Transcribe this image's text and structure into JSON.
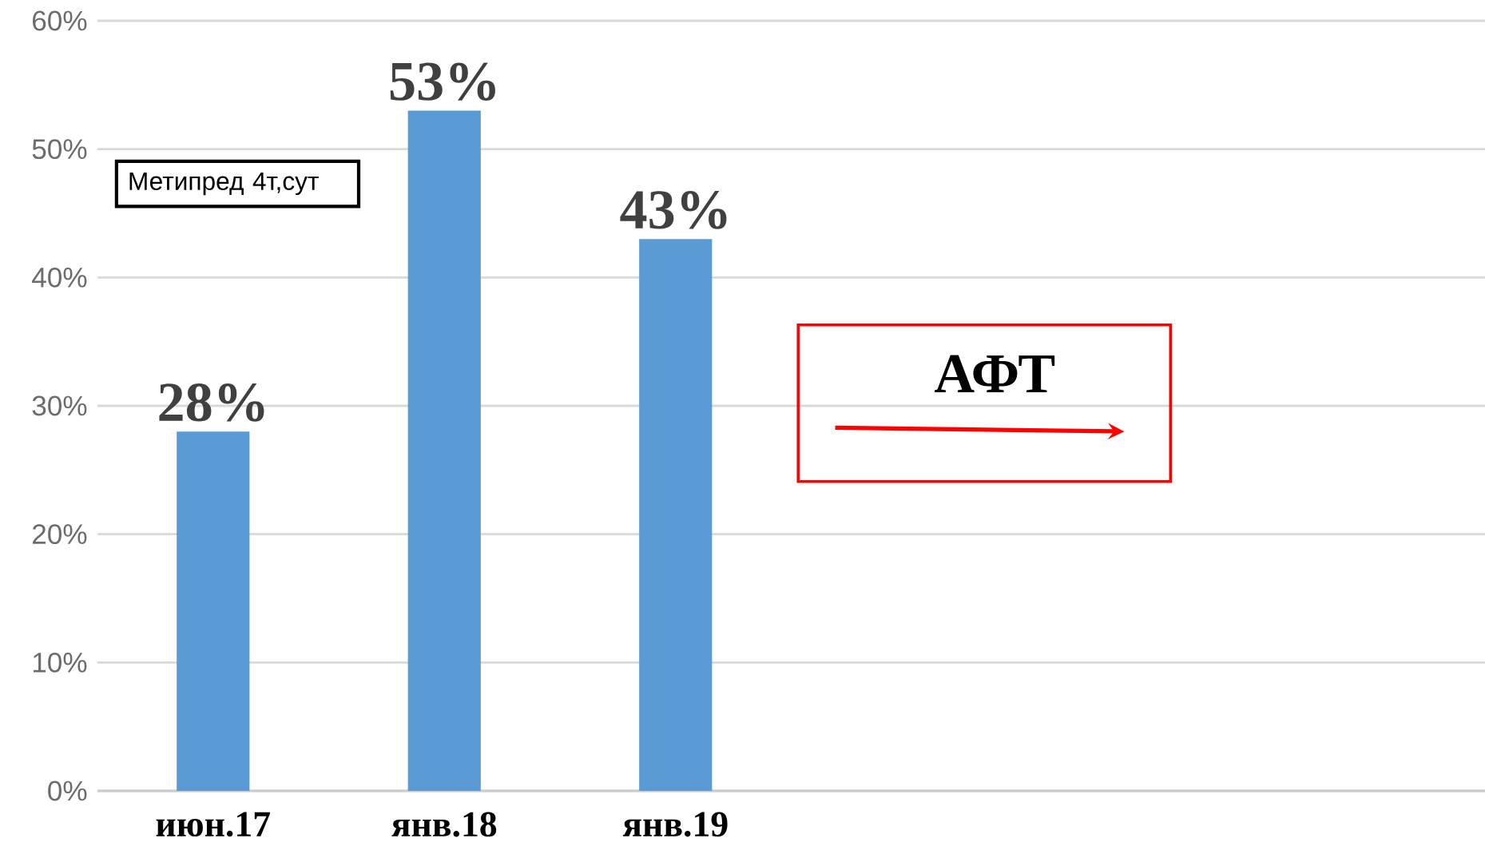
{
  "chart_data": {
    "type": "bar",
    "categories": [
      "июн.17",
      "янв.18",
      "янв.19",
      null,
      null,
      null
    ],
    "values": [
      28,
      53,
      43,
      null,
      null,
      null
    ],
    "value_labels": [
      "28%",
      "53%",
      "43%",
      null,
      null,
      null
    ],
    "color": "#5b9bd5",
    "ylim": [
      0,
      60
    ],
    "yticks": [
      {
        "value": 0,
        "label": "0%"
      },
      {
        "value": 10,
        "label": "10%"
      },
      {
        "value": 20,
        "label": "20%"
      },
      {
        "value": 30,
        "label": "30%"
      },
      {
        "value": 40,
        "label": "40%"
      },
      {
        "value": 50,
        "label": "50%"
      },
      {
        "value": 60,
        "label": "60%"
      }
    ],
    "grid": "y",
    "annotations": [
      "Метипред 4т,сут",
      "АФТ"
    ]
  }
}
